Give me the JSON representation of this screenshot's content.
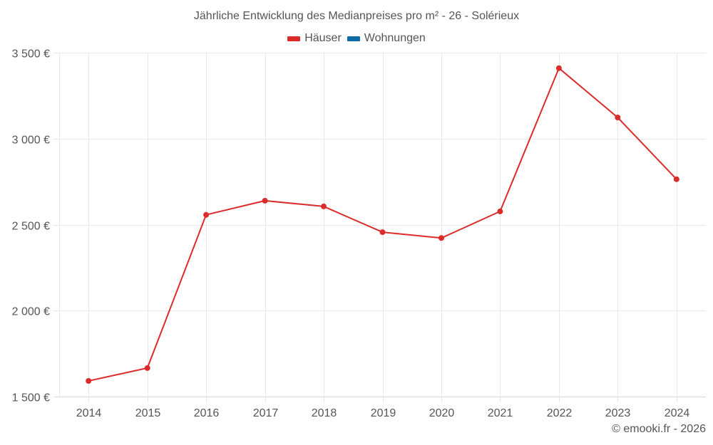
{
  "title": "Jährliche Entwicklung des Medianpreises pro m² - 26 - Solérieux",
  "legend": [
    {
      "label": "Häuser",
      "color": "#dc2b2b"
    },
    {
      "label": "Wohnungen",
      "color": "#0f6aa6"
    }
  ],
  "credits": "© emooki.fr - 2026",
  "colors": {
    "grid": "#e8e8e8",
    "axis": "#d8d8d8",
    "text": "#555555",
    "houses": "#dc2b2b",
    "apartments": "#0f6aa6"
  },
  "chart_data": {
    "type": "line",
    "title": "Jährliche Entwicklung des Medianpreises pro m² - 26 - Solérieux",
    "xlabel": "",
    "ylabel": "",
    "categories": [
      "2014",
      "2015",
      "2016",
      "2017",
      "2018",
      "2019",
      "2020",
      "2021",
      "2022",
      "2023",
      "2024"
    ],
    "series": [
      {
        "name": "Häuser",
        "color": "#dc2b2b",
        "values": [
          1591,
          1666,
          2557,
          2639,
          2606,
          2456,
          2422,
          2577,
          3410,
          3123,
          2764
        ]
      },
      {
        "name": "Wohnungen",
        "color": "#0f6aa6",
        "values": []
      }
    ],
    "ylim": [
      1500,
      3500
    ],
    "yticks": [
      1500,
      2000,
      2500,
      3000,
      3500
    ],
    "ytick_labels": [
      "1 500 €",
      "2 000 €",
      "2 500 €",
      "3 000 €",
      "3 500 €"
    ],
    "grid": true,
    "legend_position": "top-center"
  }
}
